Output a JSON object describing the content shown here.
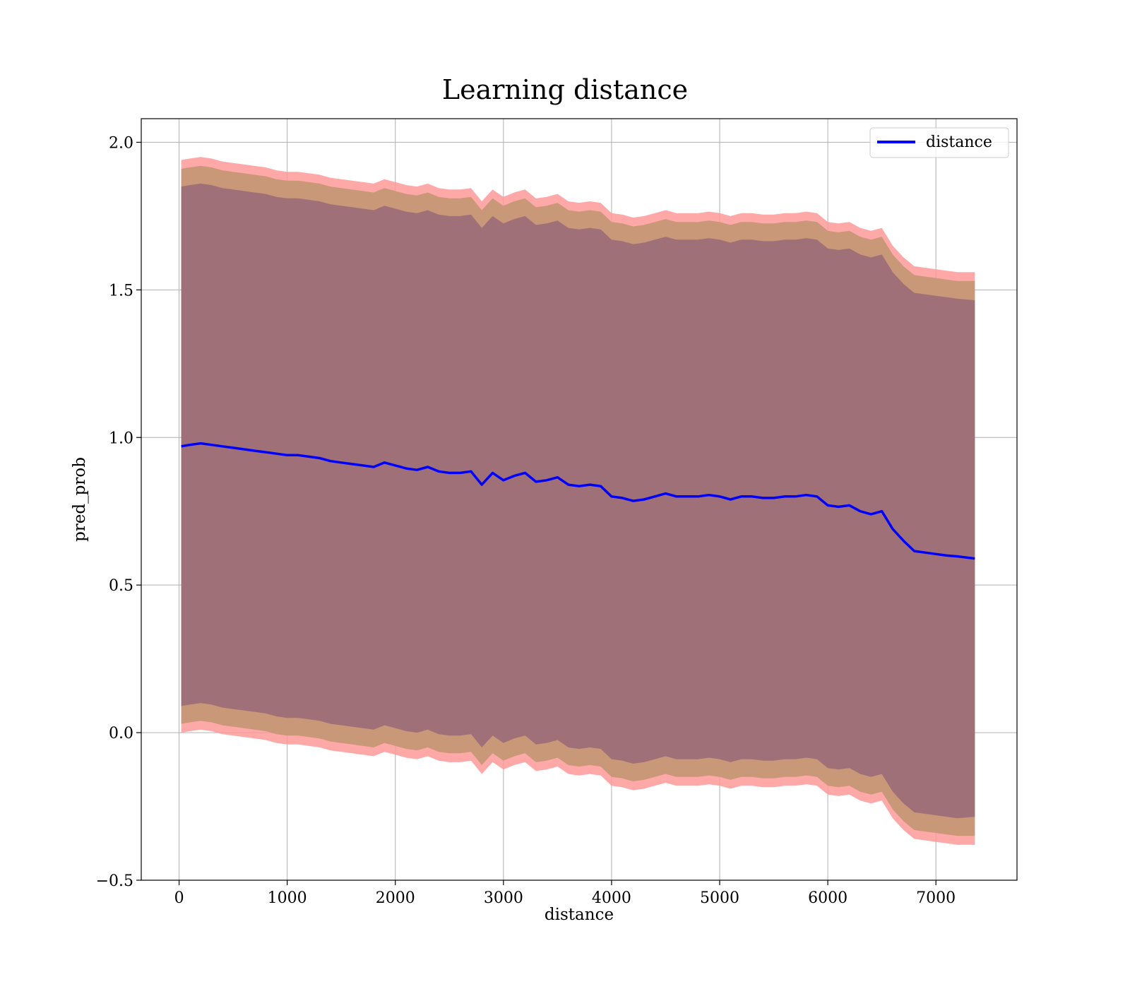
{
  "chart_data": {
    "type": "line",
    "title": "Learning distance",
    "xlabel": "distance",
    "ylabel": "pred_prob",
    "xlim": [
      -350,
      7750
    ],
    "ylim": [
      -0.5,
      2.08
    ],
    "xticks": [
      0,
      1000,
      2000,
      3000,
      4000,
      5000,
      6000,
      7000
    ],
    "xtick_labels": [
      "0",
      "1000",
      "2000",
      "3000",
      "4000",
      "5000",
      "6000",
      "7000"
    ],
    "yticks": [
      -0.5,
      0.0,
      0.5,
      1.0,
      1.5,
      2.0
    ],
    "ytick_labels": [
      "−0.5",
      "0.0",
      "0.5",
      "1.0",
      "1.5",
      "2.0"
    ],
    "grid": true,
    "legend_position": "top-right",
    "colors": {
      "line": "#0000ff",
      "band_outer": "#ff9999",
      "band_middle": "#c89878",
      "band_inner": "#a07078"
    },
    "series": [
      {
        "name": "distance",
        "x": [
          20,
          100,
          200,
          300,
          400,
          500,
          600,
          700,
          800,
          900,
          1000,
          1100,
          1200,
          1300,
          1400,
          1500,
          1600,
          1700,
          1800,
          1900,
          2000,
          2100,
          2200,
          2300,
          2400,
          2500,
          2600,
          2700,
          2800,
          2900,
          3000,
          3100,
          3200,
          3300,
          3400,
          3500,
          3600,
          3700,
          3800,
          3900,
          4000,
          4100,
          4200,
          4300,
          4400,
          4500,
          4600,
          4700,
          4800,
          4900,
          5000,
          5100,
          5200,
          5300,
          5400,
          5500,
          5600,
          5700,
          5800,
          5900,
          6000,
          6100,
          6200,
          6300,
          6400,
          6500,
          6600,
          6700,
          6800,
          6900,
          7000,
          7100,
          7200,
          7360
        ],
        "y": [
          0.97,
          0.975,
          0.98,
          0.975,
          0.97,
          0.965,
          0.96,
          0.955,
          0.95,
          0.945,
          0.94,
          0.94,
          0.935,
          0.93,
          0.92,
          0.915,
          0.91,
          0.905,
          0.9,
          0.915,
          0.905,
          0.895,
          0.89,
          0.9,
          0.885,
          0.88,
          0.88,
          0.885,
          0.84,
          0.88,
          0.855,
          0.87,
          0.88,
          0.85,
          0.855,
          0.865,
          0.84,
          0.835,
          0.84,
          0.835,
          0.8,
          0.795,
          0.785,
          0.79,
          0.8,
          0.81,
          0.8,
          0.8,
          0.8,
          0.805,
          0.8,
          0.79,
          0.8,
          0.8,
          0.795,
          0.795,
          0.8,
          0.8,
          0.805,
          0.8,
          0.77,
          0.765,
          0.77,
          0.75,
          0.74,
          0.75,
          0.69,
          0.65,
          0.615,
          0.61,
          0.605,
          0.6,
          0.597,
          0.59
        ],
        "band_inner_upper": [
          1.85,
          1.855,
          1.86,
          1.855,
          1.845,
          1.84,
          1.835,
          1.83,
          1.825,
          1.815,
          1.81,
          1.81,
          1.805,
          1.8,
          1.79,
          1.785,
          1.78,
          1.775,
          1.77,
          1.785,
          1.775,
          1.765,
          1.76,
          1.77,
          1.755,
          1.75,
          1.75,
          1.755,
          1.71,
          1.75,
          1.725,
          1.74,
          1.75,
          1.72,
          1.725,
          1.735,
          1.71,
          1.705,
          1.71,
          1.705,
          1.67,
          1.665,
          1.655,
          1.66,
          1.67,
          1.68,
          1.67,
          1.67,
          1.67,
          1.675,
          1.67,
          1.66,
          1.67,
          1.67,
          1.665,
          1.665,
          1.67,
          1.67,
          1.675,
          1.67,
          1.64,
          1.635,
          1.64,
          1.62,
          1.61,
          1.62,
          1.56,
          1.52,
          1.49,
          1.485,
          1.48,
          1.475,
          1.47,
          1.465
        ],
        "band_inner_lower": [
          0.09,
          0.095,
          0.1,
          0.095,
          0.085,
          0.08,
          0.075,
          0.07,
          0.065,
          0.055,
          0.05,
          0.05,
          0.045,
          0.04,
          0.03,
          0.025,
          0.02,
          0.015,
          0.01,
          0.025,
          0.015,
          0.005,
          0.0,
          0.01,
          -0.005,
          -0.01,
          -0.01,
          -0.005,
          -0.05,
          -0.01,
          -0.035,
          -0.02,
          -0.01,
          -0.04,
          -0.035,
          -0.025,
          -0.05,
          -0.055,
          -0.05,
          -0.055,
          -0.09,
          -0.095,
          -0.105,
          -0.1,
          -0.09,
          -0.08,
          -0.09,
          -0.09,
          -0.09,
          -0.085,
          -0.09,
          -0.1,
          -0.09,
          -0.09,
          -0.095,
          -0.095,
          -0.09,
          -0.09,
          -0.085,
          -0.09,
          -0.12,
          -0.125,
          -0.12,
          -0.14,
          -0.15,
          -0.14,
          -0.2,
          -0.24,
          -0.27,
          -0.275,
          -0.28,
          -0.285,
          -0.29,
          -0.285
        ],
        "band_middle_upper": [
          1.91,
          1.915,
          1.92,
          1.915,
          1.905,
          1.9,
          1.895,
          1.89,
          1.885,
          1.875,
          1.87,
          1.87,
          1.865,
          1.86,
          1.85,
          1.845,
          1.84,
          1.835,
          1.83,
          1.845,
          1.835,
          1.825,
          1.82,
          1.83,
          1.815,
          1.81,
          1.81,
          1.815,
          1.77,
          1.81,
          1.785,
          1.8,
          1.81,
          1.78,
          1.785,
          1.795,
          1.77,
          1.765,
          1.77,
          1.765,
          1.73,
          1.725,
          1.715,
          1.72,
          1.73,
          1.74,
          1.73,
          1.73,
          1.73,
          1.735,
          1.73,
          1.72,
          1.73,
          1.73,
          1.725,
          1.725,
          1.73,
          1.73,
          1.735,
          1.73,
          1.7,
          1.695,
          1.7,
          1.68,
          1.67,
          1.68,
          1.62,
          1.58,
          1.55,
          1.545,
          1.54,
          1.535,
          1.53,
          1.53
        ],
        "band_middle_lower": [
          0.03,
          0.035,
          0.04,
          0.035,
          0.025,
          0.02,
          0.015,
          0.01,
          0.005,
          -0.005,
          -0.01,
          -0.01,
          -0.015,
          -0.02,
          -0.03,
          -0.035,
          -0.04,
          -0.045,
          -0.05,
          -0.035,
          -0.045,
          -0.055,
          -0.06,
          -0.05,
          -0.065,
          -0.07,
          -0.07,
          -0.065,
          -0.11,
          -0.07,
          -0.095,
          -0.08,
          -0.07,
          -0.1,
          -0.095,
          -0.085,
          -0.11,
          -0.115,
          -0.11,
          -0.115,
          -0.15,
          -0.155,
          -0.165,
          -0.16,
          -0.15,
          -0.14,
          -0.15,
          -0.15,
          -0.15,
          -0.145,
          -0.15,
          -0.16,
          -0.15,
          -0.15,
          -0.155,
          -0.155,
          -0.15,
          -0.15,
          -0.145,
          -0.15,
          -0.18,
          -0.185,
          -0.18,
          -0.2,
          -0.21,
          -0.2,
          -0.26,
          -0.3,
          -0.33,
          -0.335,
          -0.34,
          -0.345,
          -0.35,
          -0.35
        ],
        "band_outer_upper": [
          1.94,
          1.945,
          1.95,
          1.945,
          1.935,
          1.93,
          1.925,
          1.92,
          1.915,
          1.905,
          1.9,
          1.9,
          1.895,
          1.89,
          1.88,
          1.875,
          1.87,
          1.865,
          1.86,
          1.875,
          1.865,
          1.855,
          1.85,
          1.86,
          1.845,
          1.84,
          1.84,
          1.845,
          1.8,
          1.84,
          1.815,
          1.83,
          1.84,
          1.81,
          1.815,
          1.825,
          1.8,
          1.795,
          1.8,
          1.795,
          1.76,
          1.755,
          1.745,
          1.75,
          1.76,
          1.77,
          1.76,
          1.76,
          1.76,
          1.765,
          1.76,
          1.75,
          1.76,
          1.76,
          1.755,
          1.755,
          1.76,
          1.76,
          1.765,
          1.76,
          1.73,
          1.725,
          1.73,
          1.71,
          1.7,
          1.71,
          1.65,
          1.61,
          1.58,
          1.575,
          1.57,
          1.565,
          1.56,
          1.56
        ],
        "band_outer_lower": [
          0.0,
          0.005,
          0.01,
          0.005,
          -0.005,
          -0.01,
          -0.015,
          -0.02,
          -0.025,
          -0.035,
          -0.04,
          -0.04,
          -0.045,
          -0.05,
          -0.06,
          -0.065,
          -0.07,
          -0.075,
          -0.08,
          -0.065,
          -0.075,
          -0.085,
          -0.09,
          -0.08,
          -0.095,
          -0.1,
          -0.1,
          -0.095,
          -0.14,
          -0.1,
          -0.125,
          -0.11,
          -0.1,
          -0.13,
          -0.125,
          -0.115,
          -0.14,
          -0.145,
          -0.14,
          -0.145,
          -0.18,
          -0.185,
          -0.195,
          -0.19,
          -0.18,
          -0.17,
          -0.18,
          -0.18,
          -0.18,
          -0.175,
          -0.18,
          -0.19,
          -0.18,
          -0.18,
          -0.185,
          -0.185,
          -0.18,
          -0.18,
          -0.175,
          -0.18,
          -0.21,
          -0.215,
          -0.21,
          -0.23,
          -0.24,
          -0.23,
          -0.29,
          -0.33,
          -0.36,
          -0.365,
          -0.37,
          -0.375,
          -0.38,
          -0.38
        ]
      }
    ]
  }
}
